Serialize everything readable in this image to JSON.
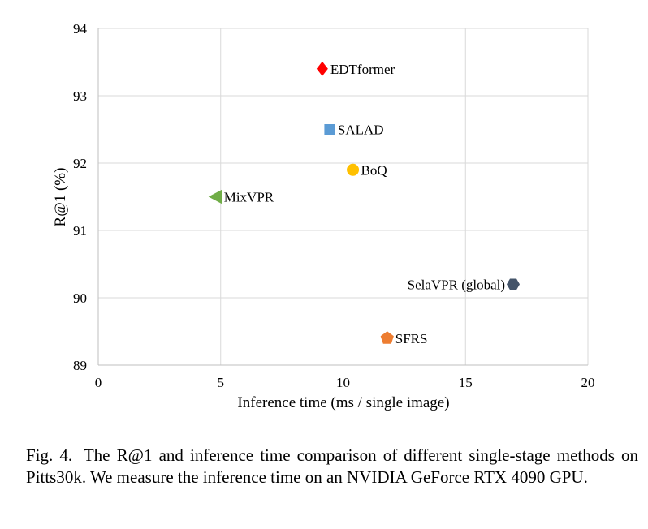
{
  "chart_data": {
    "type": "scatter",
    "xlabel": "Inference time (ms / single image)",
    "ylabel": "R@1 (%)",
    "xlim": [
      0,
      20
    ],
    "ylim": [
      89,
      94
    ],
    "x_ticks": [
      "0",
      "5",
      "10",
      "15",
      "20"
    ],
    "y_ticks": [
      "89",
      "90",
      "91",
      "92",
      "93",
      "94"
    ],
    "grid": true,
    "points": [
      {
        "label": "EDTformer",
        "x": 9.15,
        "y": 93.4,
        "marker": "diamond",
        "color": "#ff0000",
        "label_side": "right"
      },
      {
        "label": "SALAD",
        "x": 9.45,
        "y": 92.5,
        "marker": "square",
        "color": "#5b9bd5",
        "label_side": "right"
      },
      {
        "label": "BoQ",
        "x": 10.4,
        "y": 91.9,
        "marker": "circle",
        "color": "#ffc000",
        "label_side": "right"
      },
      {
        "label": "MixVPR",
        "x": 4.8,
        "y": 91.5,
        "marker": "triangle-left",
        "color": "#70ad47",
        "label_side": "right"
      },
      {
        "label": "SelaVPR (global)",
        "x": 16.95,
        "y": 90.2,
        "marker": "hexagon",
        "color": "#44546a",
        "label_side": "left"
      },
      {
        "label": "SFRS",
        "x": 11.8,
        "y": 89.4,
        "marker": "pentagon",
        "color": "#ed7d31",
        "label_side": "right"
      }
    ]
  },
  "caption": {
    "fig_label": "Fig. 4.",
    "text": "The R@1 and inference time comparison of different single-stage methods on Pitts30k. We measure the inference time on an NVIDIA GeForce RTX 4090 GPU."
  }
}
